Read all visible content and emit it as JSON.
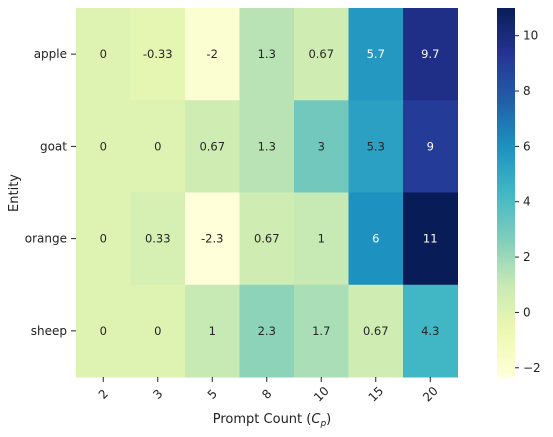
{
  "chart_data": {
    "type": "heatmap",
    "xlabel": "Prompt Count",
    "xlabel_symbol": "C",
    "xlabel_subscript": "p",
    "ylabel": "Entity",
    "x_categories": [
      "2",
      "3",
      "5",
      "8",
      "10",
      "15",
      "20"
    ],
    "y_categories": [
      "apple",
      "goat",
      "orange",
      "sheep"
    ],
    "values": [
      [
        0,
        -0.333,
        -2,
        1.333,
        0.667,
        5.667,
        9.667
      ],
      [
        0,
        0,
        0.667,
        1.333,
        3,
        5.333,
        9
      ],
      [
        0,
        0.333,
        -2.333,
        0.667,
        1,
        6,
        11
      ],
      [
        0,
        0,
        1,
        2.333,
        1.667,
        0.667,
        4.333
      ]
    ],
    "annotations": [
      [
        "0",
        "-0.33",
        "-2",
        "1.3",
        "0.67",
        "5.7",
        "9.7"
      ],
      [
        "0",
        "0",
        "0.67",
        "1.3",
        "3",
        "5.3",
        "9"
      ],
      [
        "0",
        "0.33",
        "-2.3",
        "0.67",
        "1",
        "6",
        "11"
      ],
      [
        "0",
        "0",
        "1",
        "2.3",
        "1.7",
        "0.67",
        "4.3"
      ]
    ],
    "colormap": "YlGnBu",
    "vmin": -2.333,
    "vmax": 11,
    "colorbar_ticks": [
      -2,
      0,
      2,
      4,
      6,
      8,
      10
    ],
    "grid": false,
    "legend": "colorbar-right"
  }
}
